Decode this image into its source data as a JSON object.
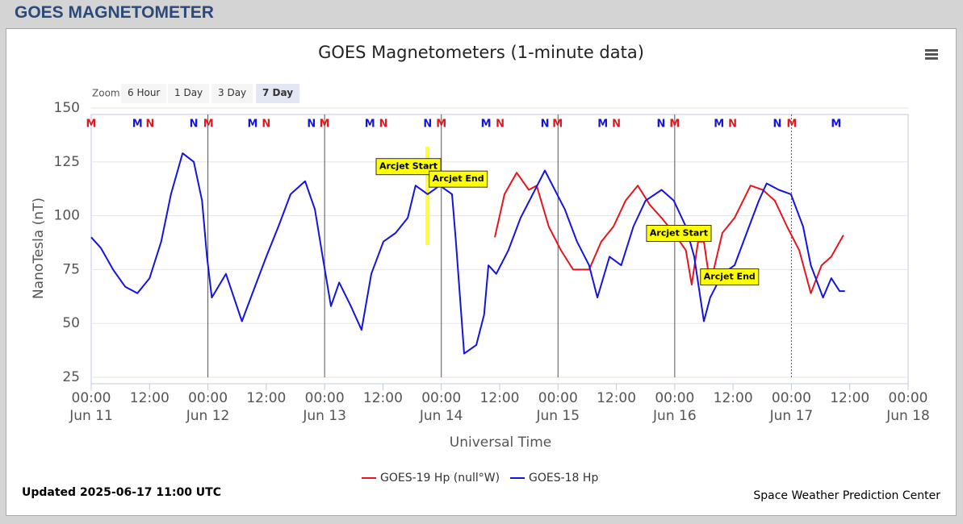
{
  "header": {
    "title": "GOES MAGNETOMETER"
  },
  "zoom": {
    "label": "Zoom",
    "buttons": [
      "6 Hour",
      "1 Day",
      "3 Day",
      "7 Day"
    ],
    "selected": 3
  },
  "footer": {
    "updated": "Updated 2025-06-17 11:00 UTC",
    "credit": "Space Weather Prediction Center"
  },
  "chart_data": {
    "type": "line",
    "title": "GOES Magnetometers (1-minute data)",
    "x_label": "Universal Time",
    "y_label": "NanoTesla (nT)",
    "xlim": [
      0,
      168
    ],
    "xticks": [
      {
        "value": 0,
        "label": "00:00\nJun 11"
      },
      {
        "value": 12,
        "label": "12:00"
      },
      {
        "value": 24,
        "label": "00:00\nJun 12"
      },
      {
        "value": 36,
        "label": "12:00"
      },
      {
        "value": 48,
        "label": "00:00\nJun 13"
      },
      {
        "value": 60,
        "label": "12:00"
      },
      {
        "value": 72,
        "label": "00:00\nJun 14"
      },
      {
        "value": 84,
        "label": "12:00"
      },
      {
        "value": 96,
        "label": "00:00\nJun 15"
      },
      {
        "value": 108,
        "label": "12:00"
      },
      {
        "value": 120,
        "label": "00:00\nJun 16"
      },
      {
        "value": 132,
        "label": "12:00"
      },
      {
        "value": 144,
        "label": "00:00\nJun 17"
      },
      {
        "value": 156,
        "label": "12:00"
      },
      {
        "value": 168,
        "label": "00:00\nJun 18"
      }
    ],
    "ylim": [
      25,
      150
    ],
    "yticks": [
      25,
      50,
      75,
      100,
      125,
      150
    ],
    "grid": true,
    "series": [
      {
        "name": "GOES-19 Hp (null°W)",
        "color": "#e8141e",
        "x": [
          83.0,
          85.0,
          87.5,
          90.0,
          91.6,
          94.1,
          96.6,
          99.1,
          102.4,
          104.9,
          107.4,
          109.9,
          112.4,
          114.9,
          117.3,
          119.8,
          122.3,
          123.5,
          124.8,
          126.0,
          127.3,
          129.8,
          132.3,
          135.6,
          138.1,
          140.6,
          143.1,
          145.6,
          148.0,
          150.2,
          152.2,
          154.7
        ],
        "values": [
          90,
          110,
          120,
          112,
          114,
          95,
          84,
          75,
          75,
          88,
          95,
          107,
          114,
          105,
          99,
          92,
          84,
          68,
          88,
          88,
          68,
          92,
          99,
          114,
          112,
          107,
          95,
          84,
          64,
          77,
          81,
          91
        ]
      },
      {
        "name": "GOES-18 Hp",
        "color": "#1414e0",
        "x": [
          0,
          2.0,
          4.5,
          7.0,
          9.5,
          12.0,
          14.4,
          16.4,
          18.8,
          21.1,
          22.8,
          23.8,
          24.8,
          27.7,
          31.0,
          33.5,
          36.0,
          38.5,
          41.0,
          44.0,
          46.0,
          47.6,
          49.3,
          51.0,
          53.4,
          55.6,
          57.6,
          60.1,
          62.6,
          65.1,
          66.7,
          69.2,
          71.7,
          74.2,
          75.0,
          76.7,
          79.2,
          80.8,
          81.7,
          83.3,
          85.8,
          88.3,
          90.8,
          93.3,
          95.8,
          97.4,
          99.9,
          102.4,
          104.1,
          106.6,
          109.0,
          111.5,
          114.0,
          117.3,
          119.8,
          122.3,
          124.0,
          126.0,
          127.3,
          129.8,
          132.3,
          134.8,
          137.3,
          138.9,
          141.4,
          143.9,
          146.4,
          148.0,
          150.5,
          152.2,
          153.9,
          155.0
        ],
        "values": [
          90,
          85,
          75,
          67,
          64,
          71,
          88,
          110,
          129,
          125,
          107,
          81,
          62,
          73,
          51,
          66,
          81,
          95,
          110,
          116,
          103,
          81,
          58,
          69,
          58,
          47,
          73,
          88,
          92,
          99,
          114,
          110,
          114,
          110,
          88,
          36,
          40,
          54,
          77,
          73,
          84,
          99,
          110,
          121,
          110,
          103,
          88,
          77,
          62,
          81,
          77,
          95,
          107,
          112,
          107,
          95,
          81,
          51,
          62,
          73,
          77,
          92,
          107,
          115,
          112,
          110,
          95,
          77,
          62,
          71,
          65,
          65
        ]
      }
    ],
    "markers": [
      {
        "label": "M",
        "x": 0,
        "color": "#e8141e"
      },
      {
        "label": "M",
        "x": 9.5,
        "color": "#1414e0"
      },
      {
        "label": "N",
        "x": 12.1,
        "color": "#e8141e"
      },
      {
        "label": "N",
        "x": 21.1,
        "color": "#1414e0"
      },
      {
        "label": "M",
        "x": 24.1,
        "color": "#e8141e"
      },
      {
        "label": "M",
        "x": 33.2,
        "color": "#1414e0"
      },
      {
        "label": "N",
        "x": 36.0,
        "color": "#e8141e"
      },
      {
        "label": "N",
        "x": 45.3,
        "color": "#1414e0"
      },
      {
        "label": "M",
        "x": 48.0,
        "color": "#e8141e"
      },
      {
        "label": "M",
        "x": 57.3,
        "color": "#1414e0"
      },
      {
        "label": "N",
        "x": 60.1,
        "color": "#e8141e"
      },
      {
        "label": "N",
        "x": 69.2,
        "color": "#1414e0"
      },
      {
        "label": "M",
        "x": 72.0,
        "color": "#e8141e"
      },
      {
        "label": "M",
        "x": 81.2,
        "color": "#1414e0"
      },
      {
        "label": "N",
        "x": 84.1,
        "color": "#e8141e"
      },
      {
        "label": "N",
        "x": 93.3,
        "color": "#1414e0"
      },
      {
        "label": "M",
        "x": 95.9,
        "color": "#e8141e"
      },
      {
        "label": "M",
        "x": 105.2,
        "color": "#1414e0"
      },
      {
        "label": "N",
        "x": 108.0,
        "color": "#e8141e"
      },
      {
        "label": "N",
        "x": 117.2,
        "color": "#1414e0"
      },
      {
        "label": "M",
        "x": 120.0,
        "color": "#e8141e"
      },
      {
        "label": "M",
        "x": 129.1,
        "color": "#1414e0"
      },
      {
        "label": "N",
        "x": 131.9,
        "color": "#e8141e"
      },
      {
        "label": "N",
        "x": 141.1,
        "color": "#1414e0"
      },
      {
        "label": "M",
        "x": 144.1,
        "color": "#e8141e"
      },
      {
        "label": "M",
        "x": 153.2,
        "color": "#1414e0"
      }
    ],
    "annotations": [
      {
        "text": "Arcjet Start",
        "x": 58.6,
        "y": 122.8
      },
      {
        "text": "Arcjet End",
        "x": 69.5,
        "y": 117
      },
      {
        "text": "Arcjet Start",
        "x": 114.2,
        "y": 91.8
      },
      {
        "text": "Arcjet End",
        "x": 125.3,
        "y": 71.6
      }
    ]
  }
}
